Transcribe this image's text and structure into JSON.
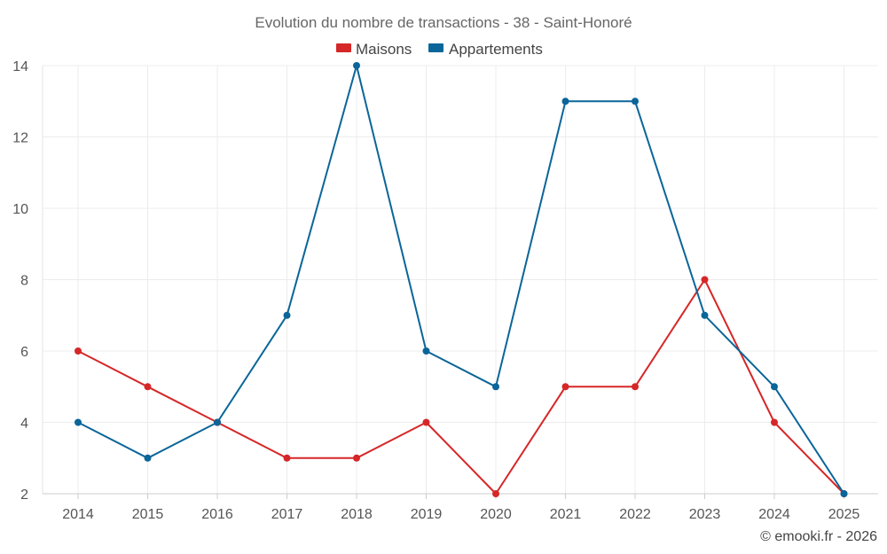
{
  "chart_data": {
    "type": "line",
    "title": "Evolution du nombre de transactions - 38 - Saint-Honoré",
    "categories": [
      "2014",
      "2015",
      "2016",
      "2017",
      "2018",
      "2019",
      "2020",
      "2021",
      "2022",
      "2023",
      "2024",
      "2025"
    ],
    "series": [
      {
        "name": "Maisons",
        "color": "#d62728",
        "values": [
          6,
          5,
          4,
          3,
          3,
          4,
          2,
          5,
          5,
          8,
          4,
          2
        ]
      },
      {
        "name": "Appartements",
        "color": "#0a6599",
        "values": [
          4,
          3,
          4,
          7,
          14,
          6,
          5,
          13,
          13,
          7,
          5,
          2
        ]
      }
    ],
    "ylim": [
      2,
      14
    ],
    "yticks": [
      2,
      4,
      6,
      8,
      10,
      12,
      14
    ],
    "xlabel": "",
    "ylabel": "",
    "grid": true,
    "legend": "top-center"
  },
  "credit": "© emooki.fr - 2026"
}
